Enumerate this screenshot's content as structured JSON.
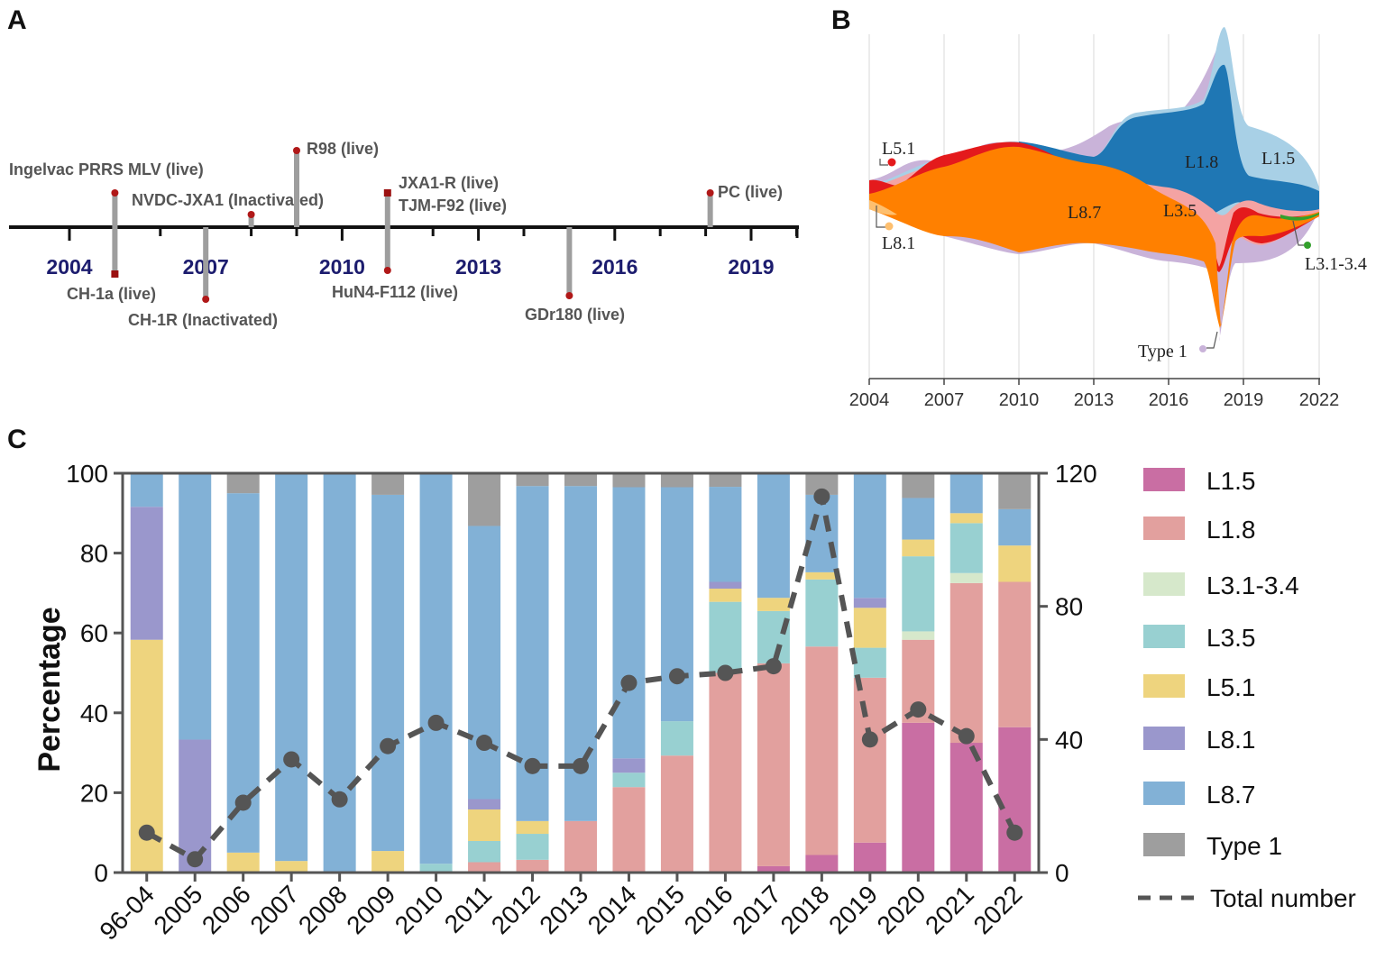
{
  "panel_a": {
    "letter": "A",
    "years": [
      "2004",
      "2007",
      "2010",
      "2013",
      "2016",
      "2019"
    ],
    "vaccines_above": [
      {
        "label": "Ingelvac PRRS MLV (live)",
        "year": 2005.0,
        "marker": "circle"
      },
      {
        "label": "NVDC-JXA1 (Inactivated)",
        "year": 2008.0,
        "marker": "circle"
      },
      {
        "label": "R98 (live)",
        "year": 2009.0,
        "marker": "circle"
      },
      {
        "label": "JXA1-R (live)",
        "year": 2011.0,
        "marker": "square"
      },
      {
        "label": "TJM-F92 (live)",
        "year": 2011.0,
        "marker": "none"
      },
      {
        "label": "PC (live)",
        "year": 2018.1,
        "marker": "circle"
      }
    ],
    "vaccines_below": [
      {
        "label": "CH-1a (live)",
        "year": 2005.0,
        "marker": "square"
      },
      {
        "label": "CH-1R (Inactivated)",
        "year": 2007.0,
        "marker": "circle"
      },
      {
        "label": "HuN4-F112 (live)",
        "year": 2011.0,
        "marker": "circle"
      },
      {
        "label": "GDr180 (live)",
        "year": 2015.0,
        "marker": "circle"
      }
    ]
  },
  "panel_b": {
    "letter": "B",
    "x_ticks": [
      "2004",
      "2007",
      "2010",
      "2013",
      "2016",
      "2019",
      "2022"
    ],
    "labels": {
      "l51": "L5.1",
      "l81": "L8.1",
      "l87": "L8.7",
      "l35": "L3.5",
      "l18": "L1.8",
      "l15": "L1.5",
      "l31": "L3.1-3.4",
      "type1": "Type 1"
    },
    "colors": {
      "l87": "#ff8000",
      "l18": "#1f77b4",
      "l15": "#a8d0e6",
      "l35": "#f4a3a3",
      "l51": "#e41a1c",
      "l81": "#fdbf6f",
      "l31": "#33a02c",
      "type1": "#c9b3d9"
    }
  },
  "panel_c": {
    "letter": "C"
  },
  "chart_data": {
    "type": "bar",
    "stacked": true,
    "title": "",
    "xlabel": "",
    "ylabel": "Percentage",
    "y2label": "",
    "ylim": [
      0,
      100
    ],
    "y2lim": [
      0,
      120
    ],
    "y_ticks": [
      "0",
      "20",
      "40",
      "60",
      "80",
      "100"
    ],
    "y2_ticks": [
      "0",
      "40",
      "80",
      "120"
    ],
    "categories": [
      "96-04",
      "2005",
      "2006",
      "2007",
      "2008",
      "2009",
      "2010",
      "2011",
      "2012",
      "2013",
      "2014",
      "2015",
      "2016",
      "2017",
      "2018",
      "2019",
      "2020",
      "2021",
      "2022"
    ],
    "series": [
      {
        "name": "L1.5",
        "color": "#c96ea3",
        "values": [
          0,
          0,
          0,
          0,
          0,
          0,
          0,
          0,
          0,
          0,
          0,
          0,
          0,
          1.6,
          4.4,
          7.5,
          37.5,
          32.5,
          36.4
        ]
      },
      {
        "name": "L1.8",
        "color": "#e2a09e",
        "values": [
          0,
          0,
          0,
          0,
          0,
          0,
          0,
          2.6,
          3.2,
          12.9,
          21.4,
          29.3,
          50.0,
          50.8,
          52.2,
          41.3,
          20.8,
          40.0,
          36.4
        ]
      },
      {
        "name": "L3.1-3.4",
        "color": "#d6e8cb",
        "values": [
          0,
          0,
          0,
          0,
          0,
          0,
          0,
          0,
          0,
          0,
          0,
          0,
          0,
          0,
          0,
          0,
          2.1,
          2.5,
          0
        ]
      },
      {
        "name": "L3.5",
        "color": "#98d0d1",
        "values": [
          0,
          0,
          0,
          0,
          0,
          0,
          2.2,
          5.3,
          6.5,
          0,
          3.6,
          8.6,
          17.8,
          13.1,
          16.8,
          7.5,
          18.8,
          12.5,
          0
        ]
      },
      {
        "name": "L5.1",
        "color": "#eed47e",
        "values": [
          58.3,
          0,
          5.0,
          2.9,
          0,
          5.4,
          0,
          7.9,
          3.2,
          0,
          0,
          0,
          3.3,
          3.3,
          1.8,
          10.0,
          4.2,
          2.5,
          9.1
        ]
      },
      {
        "name": "L8.1",
        "color": "#9a97cc",
        "values": [
          33.3,
          33.3,
          0,
          0,
          0,
          0,
          0,
          2.6,
          0,
          0,
          3.6,
          0,
          1.7,
          0,
          0,
          2.5,
          0,
          0,
          0
        ]
      },
      {
        "name": "L8.7",
        "color": "#82b1d6",
        "values": [
          8.4,
          66.7,
          90.0,
          97.1,
          100,
          89.2,
          97.8,
          68.4,
          83.9,
          83.9,
          67.9,
          58.6,
          23.8,
          31.2,
          19.4,
          31.2,
          10.4,
          10.0,
          9.1
        ]
      },
      {
        "name": "Type 1",
        "color": "#9e9e9e",
        "values": [
          0,
          0,
          5.0,
          0,
          0,
          5.4,
          0,
          13.2,
          3.2,
          3.2,
          3.5,
          3.5,
          3.4,
          0,
          5.4,
          0,
          6.2,
          0,
          9.0
        ]
      }
    ],
    "line": {
      "name": "Total number",
      "axis": "right",
      "color": "#555555",
      "values": [
        12,
        4,
        21,
        34,
        22,
        38,
        45,
        39,
        32,
        32,
        57,
        59,
        60,
        62,
        113,
        40,
        49,
        41,
        12
      ]
    },
    "legend_position": "right"
  }
}
